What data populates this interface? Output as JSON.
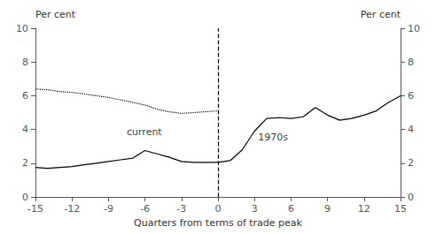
{
  "chart_data": {
    "type": "line",
    "xlabel": "Quarters from terms of trade peak",
    "ylabel": "Per cent",
    "y2label": "Per cent",
    "xlim": [
      -15,
      15
    ],
    "xticks": [
      -15,
      -12,
      -9,
      -6,
      -3,
      0,
      3,
      6,
      9,
      12,
      15
    ],
    "ylim": [
      0,
      10
    ],
    "yticks": [
      0,
      2,
      4,
      6,
      8,
      10
    ],
    "y2lim": [
      0,
      10
    ],
    "y2ticks": [
      0,
      2,
      4,
      6,
      8,
      10
    ],
    "grid": false,
    "series": [
      {
        "x": [
          -15,
          -14,
          -13,
          -12,
          -11,
          -10,
          -9,
          -8,
          -7,
          -6,
          -5,
          -4,
          -3,
          -2,
          -1,
          0,
          1,
          2,
          3,
          4,
          5,
          6,
          7,
          8,
          9,
          10,
          11,
          12,
          13,
          14,
          15
        ],
        "values": [
          1.75,
          1.7,
          1.75,
          1.8,
          1.9,
          2.0,
          2.1,
          2.2,
          2.3,
          2.75,
          2.55,
          2.35,
          2.1,
          2.05,
          2.05,
          2.05,
          2.15,
          2.8,
          3.9,
          4.65,
          4.7,
          4.65,
          4.75,
          5.3,
          4.85,
          4.55,
          4.65,
          4.85,
          5.1,
          5.6,
          6.0
        ],
        "line_style": "solid",
        "color": "#000000"
      },
      {
        "x": [
          -15,
          -14,
          -13,
          -12,
          -11,
          -10,
          -9,
          -8,
          -7,
          -6,
          -5,
          -4,
          -3,
          -2,
          -1,
          0
        ],
        "values": [
          6.4,
          6.35,
          6.25,
          6.2,
          6.1,
          6.0,
          5.9,
          5.75,
          5.6,
          5.45,
          5.2,
          5.05,
          4.95,
          5.0,
          5.05,
          5.1
        ],
        "line_style": "dotted",
        "color": "#000000"
      }
    ],
    "vlines": [
      {
        "x": 0,
        "line_style": "dashed",
        "color": "#000000"
      }
    ],
    "annotations": [
      {
        "text": "current",
        "x": -7.5,
        "y": 3.85,
        "color": "#000000"
      },
      {
        "text": "1970s",
        "x": 3.3,
        "y": 3.55,
        "color": "#000000"
      }
    ]
  }
}
